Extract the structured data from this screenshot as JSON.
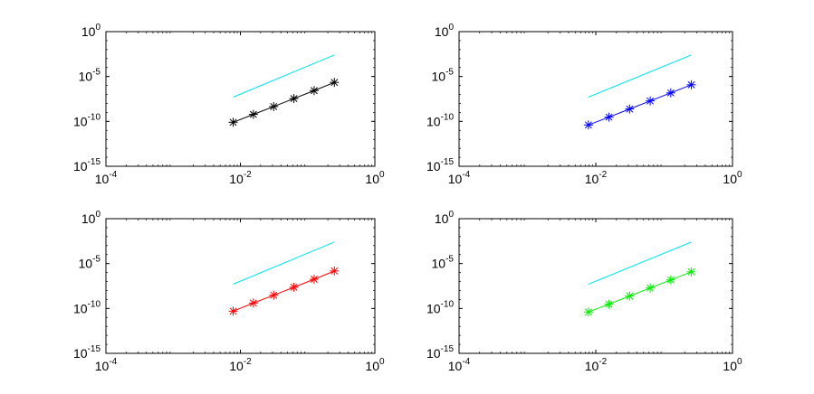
{
  "chart_data": [
    {
      "type": "line",
      "xscale": "log",
      "yscale": "log",
      "xlim": [
        0.0001,
        1
      ],
      "ylim": [
        1e-15,
        1
      ],
      "xticks": [
        {
          "value": 0.0001,
          "base": "10",
          "exp": "-4"
        },
        {
          "value": 0.01,
          "base": "10",
          "exp": "-2"
        },
        {
          "value": 1,
          "base": "10",
          "exp": "0"
        }
      ],
      "yticks": [
        {
          "value": 1,
          "base": "10",
          "exp": "0"
        },
        {
          "value": 1e-05,
          "base": "10",
          "exp": "-5"
        },
        {
          "value": 1e-10,
          "base": "10",
          "exp": "-10"
        },
        {
          "value": 1e-15,
          "base": "10",
          "exp": "-15"
        }
      ],
      "grid": false,
      "series": [
        {
          "color": "#00e5ee",
          "marker": "none",
          "x": [
            0.0078,
            0.25
          ],
          "y": [
            5e-08,
            0.0025
          ]
        },
        {
          "color": "#000000",
          "marker": "asterisk",
          "x": [
            0.0078,
            0.0156,
            0.03125,
            0.0625,
            0.125,
            0.25
          ],
          "y": [
            8e-11,
            6e-10,
            4.5e-09,
            3.5e-08,
            2.7e-07,
            2.2e-06
          ]
        }
      ]
    },
    {
      "type": "line",
      "xscale": "log",
      "yscale": "log",
      "xlim": [
        0.0001,
        1
      ],
      "ylim": [
        1e-15,
        1
      ],
      "xticks": [
        {
          "value": 0.0001,
          "base": "10",
          "exp": "-4"
        },
        {
          "value": 0.01,
          "base": "10",
          "exp": "-2"
        },
        {
          "value": 1,
          "base": "10",
          "exp": "0"
        }
      ],
      "yticks": [
        {
          "value": 1,
          "base": "10",
          "exp": "0"
        },
        {
          "value": 1e-05,
          "base": "10",
          "exp": "-5"
        },
        {
          "value": 1e-10,
          "base": "10",
          "exp": "-10"
        },
        {
          "value": 1e-15,
          "base": "10",
          "exp": "-15"
        }
      ],
      "grid": false,
      "series": [
        {
          "color": "#00e5ee",
          "marker": "none",
          "x": [
            0.0078,
            0.25
          ],
          "y": [
            5e-08,
            0.0025
          ]
        },
        {
          "color": "#0000ff",
          "marker": "asterisk",
          "x": [
            0.0078,
            0.0156,
            0.03125,
            0.0625,
            0.125,
            0.25
          ],
          "y": [
            4e-11,
            3e-10,
            2.4e-09,
            1.9e-08,
            1.5e-07,
            1.2e-06
          ]
        }
      ]
    },
    {
      "type": "line",
      "xscale": "log",
      "yscale": "log",
      "xlim": [
        0.0001,
        1
      ],
      "ylim": [
        1e-15,
        1
      ],
      "xticks": [
        {
          "value": 0.0001,
          "base": "10",
          "exp": "-4"
        },
        {
          "value": 0.01,
          "base": "10",
          "exp": "-2"
        },
        {
          "value": 1,
          "base": "10",
          "exp": "0"
        }
      ],
      "yticks": [
        {
          "value": 1,
          "base": "10",
          "exp": "0"
        },
        {
          "value": 1e-05,
          "base": "10",
          "exp": "-5"
        },
        {
          "value": 1e-10,
          "base": "10",
          "exp": "-10"
        },
        {
          "value": 1e-15,
          "base": "10",
          "exp": "-15"
        }
      ],
      "grid": false,
      "series": [
        {
          "color": "#00e5ee",
          "marker": "none",
          "x": [
            0.0078,
            0.25
          ],
          "y": [
            5e-08,
            0.0025
          ]
        },
        {
          "color": "#ff0000",
          "marker": "asterisk",
          "x": [
            0.0078,
            0.0156,
            0.03125,
            0.0625,
            0.125,
            0.25
          ],
          "y": [
            5e-11,
            4e-10,
            3e-09,
            2.3e-08,
            1.8e-07,
            1.5e-06
          ]
        }
      ]
    },
    {
      "type": "line",
      "xscale": "log",
      "yscale": "log",
      "xlim": [
        0.0001,
        1
      ],
      "ylim": [
        1e-15,
        1
      ],
      "xticks": [
        {
          "value": 0.0001,
          "base": "10",
          "exp": "-4"
        },
        {
          "value": 0.01,
          "base": "10",
          "exp": "-2"
        },
        {
          "value": 1,
          "base": "10",
          "exp": "0"
        }
      ],
      "yticks": [
        {
          "value": 1,
          "base": "10",
          "exp": "0"
        },
        {
          "value": 1e-05,
          "base": "10",
          "exp": "-5"
        },
        {
          "value": 1e-10,
          "base": "10",
          "exp": "-10"
        },
        {
          "value": 1e-15,
          "base": "10",
          "exp": "-15"
        }
      ],
      "grid": false,
      "series": [
        {
          "color": "#00e5ee",
          "marker": "none",
          "x": [
            0.0078,
            0.25
          ],
          "y": [
            5e-08,
            0.0025
          ]
        },
        {
          "color": "#00ee00",
          "marker": "asterisk",
          "x": [
            0.0078,
            0.0156,
            0.03125,
            0.0625,
            0.125,
            0.25
          ],
          "y": [
            4e-11,
            3e-10,
            2.4e-09,
            1.9e-08,
            1.5e-07,
            1.2e-06
          ]
        }
      ]
    }
  ]
}
